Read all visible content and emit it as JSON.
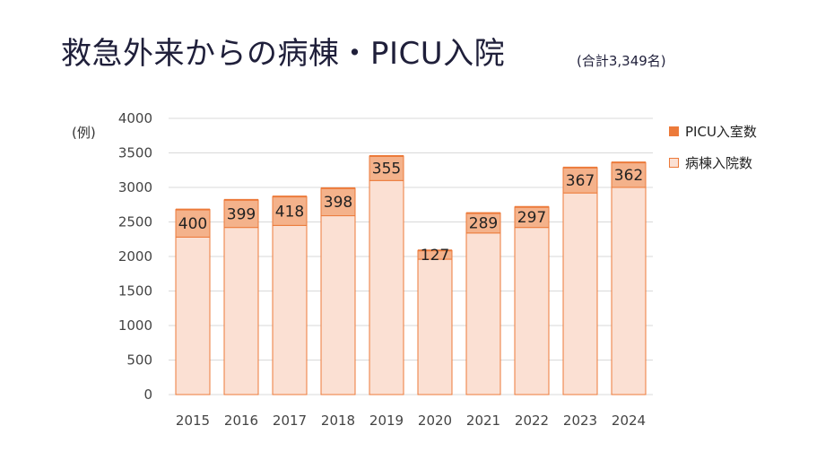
{
  "title": "救急外来からの病棟・PICU入院",
  "subtitle": "(合計3,349名)",
  "unit_label": "(例)",
  "colors": {
    "picu": "#ec7a3a",
    "picu_fill": "#f4b28b",
    "ward": "#fbe0d3",
    "border": "#ec7a3a",
    "grid": "#d9d9d9"
  },
  "legend": [
    {
      "label": "PICU入室数",
      "color": "#ec7a3a"
    },
    {
      "label": "病棟入院数",
      "color": "#fbe0d3"
    }
  ],
  "chart_data": {
    "type": "bar",
    "stacked": true,
    "categories": [
      "2015",
      "2016",
      "2017",
      "2018",
      "2019",
      "2020",
      "2021",
      "2022",
      "2023",
      "2024"
    ],
    "series": [
      {
        "name": "病棟入院数",
        "values": [
          2280,
          2420,
          2450,
          2590,
          3100,
          1960,
          2340,
          2420,
          2920,
          3000
        ]
      },
      {
        "name": "PICU入室数",
        "values": [
          400,
          399,
          418,
          398,
          355,
          127,
          289,
          297,
          367,
          362
        ]
      }
    ],
    "data_labels": [
      "400",
      "399",
      "418",
      "398",
      "355",
      "127",
      "289",
      "297",
      "367",
      "362"
    ],
    "y_ticks": [
      0,
      500,
      1000,
      1500,
      2000,
      2500,
      3000,
      3500,
      4000
    ],
    "ylim": [
      0,
      4000
    ],
    "grid": true,
    "legend_position": "right"
  }
}
